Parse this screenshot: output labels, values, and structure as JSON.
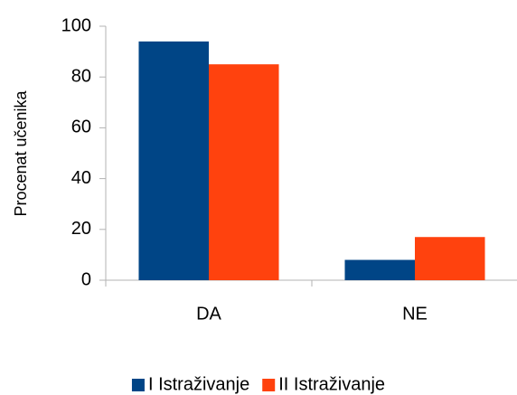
{
  "chart_data": {
    "type": "bar",
    "ylabel": "Procenat učenika",
    "categories": [
      "DA",
      "NE"
    ],
    "series": [
      {
        "name": "I Istraživanje",
        "color": "#004586",
        "values": [
          94,
          8
        ]
      },
      {
        "name": "II Istraživanje",
        "color": "#ff420e",
        "values": [
          85,
          17
        ]
      }
    ],
    "ylim": [
      0,
      100
    ],
    "yticks": [
      0,
      20,
      40,
      60,
      80,
      100
    ],
    "grid": false,
    "legend": "bottom"
  }
}
